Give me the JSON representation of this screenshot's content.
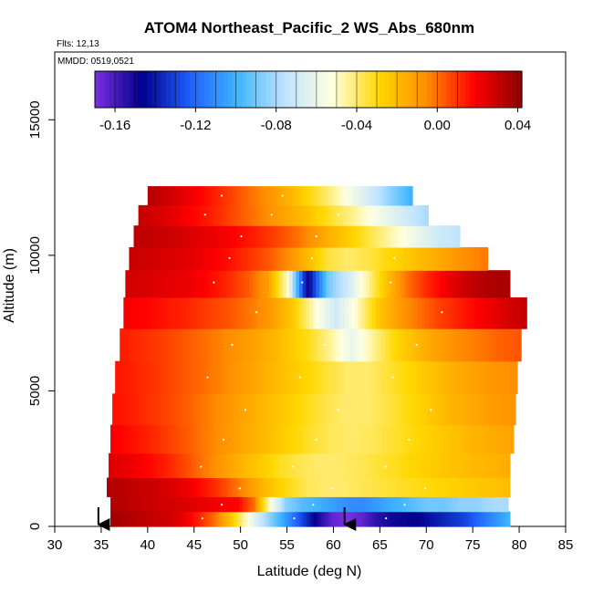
{
  "chart_data": {
    "type": "heatmap",
    "title": "ATOM4 Northeast_Pacific_2 WS_Abs_680nm",
    "flights_label": "Flts: 12,13",
    "dates_label": "MMDD: 0519,0521",
    "xlabel": "Latitude (deg N)",
    "ylabel": "Altitude (m)",
    "xlim": [
      30,
      85
    ],
    "ylim": [
      0,
      17500
    ],
    "x_ticks": [
      "30",
      "35",
      "40",
      "45",
      "50",
      "55",
      "60",
      "65",
      "70",
      "75",
      "80",
      "85"
    ],
    "y_ticks": [
      "0",
      "5000",
      "10000",
      "15000"
    ],
    "colorbar": {
      "range": [
        -0.17,
        0.042
      ],
      "ticks": [
        "-0.16",
        "-0.12",
        "-0.08",
        "-0.04",
        "0.00",
        "0.04"
      ],
      "tick_values": [
        -0.16,
        -0.12,
        -0.08,
        -0.04,
        0.0,
        0.04
      ],
      "colors": [
        "#7b2fe0",
        "#00008b",
        "#1f5fff",
        "#3fb5ff",
        "#bfe3ff",
        "#ffffe0",
        "#ffd700",
        "#ff8c00",
        "#ff0000",
        "#8b0000"
      ]
    },
    "markers": [
      {
        "x": 34.7,
        "label": "arrow"
      },
      {
        "x": 61.2,
        "label": "arrow"
      }
    ],
    "rows": [
      {
        "alt": 300,
        "lat": [
          36.0,
          79.0
        ],
        "values": [
          0.038,
          0.035,
          0.032,
          0.03,
          0.028,
          0.022,
          0.012,
          0.0,
          -0.02,
          -0.045,
          -0.07,
          -0.09,
          -0.11,
          -0.13,
          -0.15,
          -0.165,
          -0.17,
          -0.165,
          -0.155,
          -0.15,
          -0.148,
          -0.145,
          -0.14,
          -0.135,
          -0.13,
          -0.12,
          -0.11,
          -0.1
        ]
      },
      {
        "alt": 800,
        "lat": [
          36.0,
          78.8
        ],
        "values": [
          0.034,
          0.032,
          0.03,
          0.028,
          0.027,
          0.025,
          0.022,
          0.02,
          0.018,
          0.0,
          -0.05,
          -0.085,
          -0.095,
          -0.1,
          -0.105,
          -0.11,
          -0.11,
          -0.105,
          -0.1,
          -0.095,
          -0.09,
          -0.09,
          -0.085,
          -0.085,
          -0.08,
          -0.08
        ]
      },
      {
        "alt": 1400,
        "lat": [
          35.6,
          79.0
        ],
        "values": [
          0.034,
          0.032,
          0.03,
          0.028,
          0.025,
          0.02,
          0.014,
          0.006,
          -0.004,
          -0.015,
          -0.025,
          -0.032,
          -0.038,
          -0.04,
          -0.04,
          -0.038,
          -0.036,
          -0.034,
          -0.032,
          -0.03,
          -0.028,
          -0.026,
          -0.024,
          -0.022,
          -0.02
        ]
      },
      {
        "alt": 2200,
        "lat": [
          35.8,
          79.0
        ],
        "values": [
          0.025,
          0.022,
          0.018,
          0.013,
          0.006,
          -0.002,
          -0.01,
          -0.018,
          -0.025,
          -0.032,
          -0.037,
          -0.04,
          -0.04,
          -0.038,
          -0.035,
          -0.032,
          -0.028,
          -0.025,
          -0.022,
          -0.02,
          -0.018,
          -0.015
        ]
      },
      {
        "alt": 3200,
        "lat": [
          36.0,
          79.4
        ],
        "values": [
          0.02,
          0.016,
          0.012,
          0.007,
          0.002,
          -0.004,
          -0.01,
          -0.016,
          -0.022,
          -0.028,
          -0.034,
          -0.038,
          -0.04,
          -0.038,
          -0.034,
          -0.03,
          -0.026,
          -0.022,
          -0.018,
          -0.015,
          -0.012
        ]
      },
      {
        "alt": 4300,
        "lat": [
          36.2,
          79.6
        ],
        "values": [
          0.016,
          0.013,
          0.009,
          0.005,
          0.0,
          -0.006,
          -0.012,
          -0.018,
          -0.024,
          -0.03,
          -0.036,
          -0.04,
          -0.04,
          -0.036,
          -0.03,
          -0.024,
          -0.018,
          -0.014,
          -0.01,
          -0.008
        ]
      },
      {
        "alt": 5500,
        "lat": [
          36.5,
          79.8
        ],
        "values": [
          0.015,
          0.012,
          0.009,
          0.005,
          0.001,
          -0.004,
          -0.01,
          -0.016,
          -0.022,
          -0.028,
          -0.034,
          -0.04,
          -0.04,
          -0.034,
          -0.028,
          -0.022,
          -0.016,
          -0.012,
          -0.008,
          -0.006
        ]
      },
      {
        "alt": 6700,
        "lat": [
          37.0,
          80.2
        ],
        "values": [
          0.014,
          0.011,
          0.008,
          0.004,
          0.0,
          -0.005,
          -0.01,
          -0.016,
          -0.024,
          -0.032,
          -0.045,
          -0.06,
          -0.045,
          -0.03,
          -0.02,
          -0.012,
          -0.006,
          -0.002,
          0.002,
          0.004
        ]
      },
      {
        "alt": 7900,
        "lat": [
          37.4,
          80.8
        ],
        "values": [
          0.02,
          0.018,
          0.015,
          0.012,
          0.008,
          0.004,
          -0.002,
          -0.01,
          -0.025,
          -0.05,
          -0.07,
          -0.05,
          -0.025,
          -0.01,
          0.0,
          0.008,
          0.014,
          0.02,
          0.026,
          0.03
        ]
      },
      {
        "alt": 9000,
        "lat": [
          37.6,
          79.0
        ],
        "values": [
          0.028,
          0.026,
          0.024,
          0.022,
          0.018,
          0.012,
          0.004,
          -0.01,
          -0.05,
          -0.15,
          -0.09,
          -0.07,
          -0.045,
          -0.02,
          0.0,
          0.012,
          0.022,
          0.03,
          0.035,
          0.036
        ]
      },
      {
        "alt": 9900,
        "lat": [
          38.0,
          76.6
        ],
        "values": [
          0.03,
          0.028,
          0.026,
          0.024,
          0.02,
          0.016,
          0.01,
          0.004,
          -0.006,
          -0.02,
          -0.035,
          -0.04,
          -0.036,
          -0.03,
          -0.024,
          -0.018,
          -0.012,
          -0.006,
          -0.002
        ]
      },
      {
        "alt": 10700,
        "lat": [
          38.5,
          73.6
        ],
        "values": [
          0.032,
          0.03,
          0.028,
          0.025,
          0.022,
          0.018,
          0.013,
          0.007,
          0.0,
          -0.01,
          -0.02,
          -0.03,
          -0.04,
          -0.05,
          -0.06,
          -0.07,
          -0.075
        ]
      },
      {
        "alt": 11500,
        "lat": [
          39.0,
          70.2
        ],
        "values": [
          0.03,
          0.026,
          0.021,
          0.016,
          0.01,
          0.003,
          -0.004,
          -0.012,
          -0.02,
          -0.03,
          -0.04,
          -0.05,
          -0.06,
          -0.07,
          -0.08
        ]
      },
      {
        "alt": 12200,
        "lat": [
          40.0,
          68.5
        ],
        "values": [
          0.033,
          0.028,
          0.022,
          0.015,
          0.008,
          0.0,
          -0.008,
          -0.018,
          -0.03,
          -0.042,
          -0.056,
          -0.07,
          -0.085,
          -0.1
        ]
      }
    ]
  }
}
